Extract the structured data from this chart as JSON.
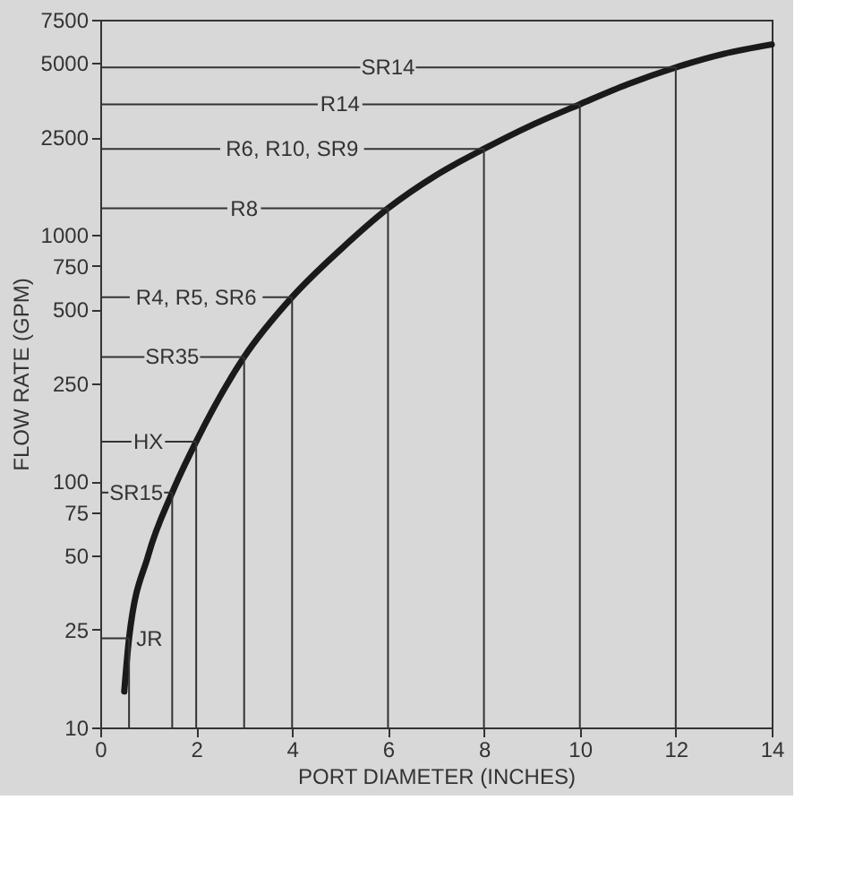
{
  "chart_data": {
    "type": "line",
    "xlabel": "PORT DIAMETER (INCHES)",
    "ylabel": "FLOW RATE (GPM)",
    "xlim": [
      0,
      14
    ],
    "xticks": [
      0,
      2,
      4,
      6,
      8,
      10,
      12,
      14
    ],
    "ylim": [
      10,
      7500
    ],
    "yticks": [
      10,
      25,
      50,
      75,
      100,
      250,
      500,
      750,
      1000,
      2500,
      5000,
      7500
    ],
    "log": "y",
    "grid": false,
    "marker": "none",
    "line_style": "solid",
    "series": [
      {
        "color": "#1a1a1a",
        "x": [
          0.5,
          0.6,
          1,
          1.5,
          2,
          3,
          4,
          5,
          6,
          7,
          8,
          9,
          10,
          11,
          12,
          13,
          14
        ],
        "values": [
          14,
          23,
          50,
          90,
          145,
          320,
          560,
          870,
          1285,
          1750,
          2240,
          2800,
          3400,
          4100,
          4800,
          5450,
          5950
        ]
      }
    ],
    "ref_lines": [
      {
        "axis": "y",
        "value": 4800,
        "label": "SR14"
      },
      {
        "axis": "y",
        "value": 3400,
        "label": "R14"
      },
      {
        "axis": "y",
        "value": 2240,
        "label": "R6, R10, SR9"
      },
      {
        "axis": "y",
        "value": 1285,
        "label": "R8"
      },
      {
        "axis": "y",
        "value": 560,
        "label": "R4, R5, SR6"
      },
      {
        "axis": "y",
        "value": 320,
        "label": "SR35"
      },
      {
        "axis": "y",
        "value": 145,
        "label": "HX"
      },
      {
        "axis": "y",
        "value": 90,
        "label": "SR15"
      },
      {
        "axis": "y",
        "value": 23,
        "label": "JR"
      },
      {
        "axis": "x",
        "value": 12
      },
      {
        "axis": "x",
        "value": 10
      },
      {
        "axis": "x",
        "value": 8
      },
      {
        "axis": "x",
        "value": 6
      },
      {
        "axis": "x",
        "value": 4
      },
      {
        "axis": "x",
        "value": 3
      },
      {
        "axis": "x",
        "value": 2
      },
      {
        "axis": "x",
        "value": 1.5
      },
      {
        "axis": "x",
        "value": 0.6
      }
    ]
  }
}
